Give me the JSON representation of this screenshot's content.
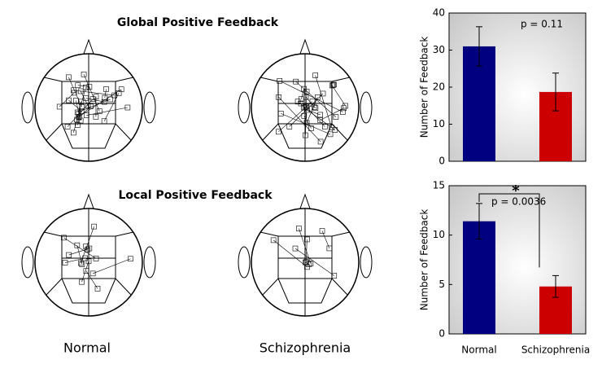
{
  "panel_titles": [
    "Global Positive Feedback",
    "Local Positive Feedback"
  ],
  "group_labels": [
    "Normal",
    "Schizophrenia"
  ],
  "chart_data": [
    {
      "type": "bar",
      "ylabel": "Number of Feedback",
      "categories": [
        null,
        null
      ],
      "values": [
        31,
        18.7
      ],
      "errors": [
        5.3,
        5.1
      ],
      "colors": [
        "#000080",
        "#cc0000"
      ],
      "ylim": [
        0,
        40
      ],
      "yticks": [
        0,
        10,
        20,
        30,
        40
      ],
      "annotation": "p = 0.11"
    },
    {
      "type": "bar",
      "ylabel": "Number of Feedback",
      "categories": [
        "Normal",
        "Schizophrenia"
      ],
      "values": [
        11.4,
        4.8
      ],
      "errors": [
        1.8,
        1.1
      ],
      "colors": [
        "#000080",
        "#cc0000"
      ],
      "ylim": [
        0,
        15
      ],
      "yticks": [
        0,
        5,
        10,
        15
      ],
      "annotation": "p = 0.0036",
      "significance": "*"
    }
  ]
}
